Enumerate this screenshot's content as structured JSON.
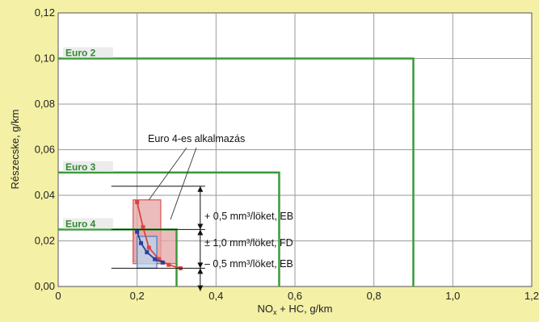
{
  "chart_data": {
    "type": "scatter",
    "title": "",
    "xlabel": {
      "main": "NO",
      "sub": "x",
      "rest": " + HC, g/km"
    },
    "ylabel": "Részecske, g/km",
    "xlim": [
      0,
      1.2
    ],
    "ylim": [
      0,
      0.12
    ],
    "x_ticks": [
      0,
      0.2,
      0.4,
      0.6,
      0.8,
      1.0,
      1.2
    ],
    "x_tick_labels": [
      "0",
      "0,2",
      "0,4",
      "0,6",
      "0,8",
      "1,0",
      "1,2"
    ],
    "y_ticks": [
      0,
      0.02,
      0.04,
      0.06,
      0.08,
      0.1,
      0.12
    ],
    "y_tick_labels": [
      "0,00",
      "0,02",
      "0,04",
      "0,06",
      "0,08",
      "0,10",
      "0,12"
    ],
    "grid": true,
    "standards": [
      {
        "name": "Euro 2",
        "nox_hc": 0.9,
        "pm": 0.1,
        "color": "#3a9a3a"
      },
      {
        "name": "Euro 3",
        "nox_hc": 0.56,
        "pm": 0.05,
        "color": "#3a9a3a"
      },
      {
        "name": "Euro 4",
        "nox_hc": 0.3,
        "pm": 0.025,
        "color": "#3a9a3a"
      }
    ],
    "regions": [
      {
        "x": [
          0.19,
          0.26
        ],
        "y": [
          0.011,
          0.038
        ],
        "fill": "#e6a6a6",
        "stroke": "#d9534f"
      },
      {
        "x": [
          0.19,
          0.3
        ],
        "y": [
          0.01,
          0.025
        ],
        "fill": "#e6a6a6",
        "stroke": "#d9534f"
      },
      {
        "x": [
          0.2,
          0.25
        ],
        "y": [
          0.008,
          0.022
        ],
        "fill": "#b9d7f1",
        "stroke": "#4a78c4"
      }
    ],
    "series": [
      {
        "color": "#d9453d",
        "points": [
          {
            "x": 0.2,
            "y": 0.037
          },
          {
            "x": 0.215,
            "y": 0.026
          },
          {
            "x": 0.23,
            "y": 0.017
          },
          {
            "x": 0.255,
            "y": 0.012
          },
          {
            "x": 0.28,
            "y": 0.0095
          },
          {
            "x": 0.31,
            "y": 0.008
          }
        ]
      },
      {
        "color": "#2b3fa0",
        "points": [
          {
            "x": 0.2,
            "y": 0.024
          },
          {
            "x": 0.21,
            "y": 0.019
          },
          {
            "x": 0.225,
            "y": 0.015
          },
          {
            "x": 0.245,
            "y": 0.012
          },
          {
            "x": 0.265,
            "y": 0.0105
          }
        ]
      }
    ],
    "brackets": [
      {
        "x": 0.36,
        "top": 0.044,
        "bottom": 0.025
      },
      {
        "x": 0.36,
        "top": 0.025,
        "bottom": 0.008
      },
      {
        "x": 0.36,
        "top": 0.008,
        "bottom": -0.002
      }
    ],
    "annotations": [
      {
        "id": "app",
        "text": "Euro 4-es alkalmazás"
      },
      {
        "id": "plus",
        "text": "+ 0,5 mm³/löket, EB"
      },
      {
        "id": "pm",
        "text": "± 1,0 mm³/löket, FD"
      },
      {
        "id": "minus",
        "text": "– 0,5 mm³/löket, EB"
      }
    ]
  }
}
